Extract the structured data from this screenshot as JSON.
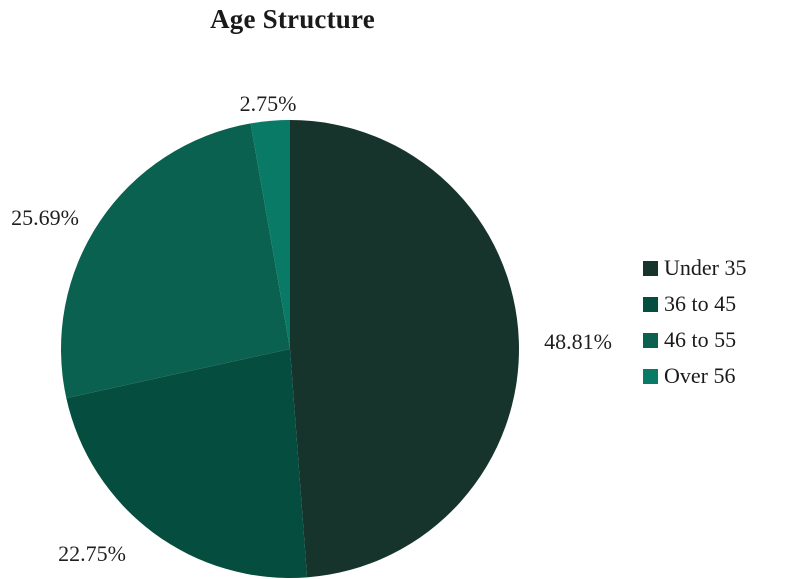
{
  "chart_data": {
    "type": "pie",
    "title": "Age Structure",
    "categories": [
      "Under 35",
      "36 to 45",
      "46 to 55",
      "Over 56"
    ],
    "values": [
      48.81,
      22.75,
      25.69,
      2.75
    ],
    "labels": [
      "48.81%",
      "22.75%",
      "25.69%",
      "2.75%"
    ],
    "colors": [
      "#16342c",
      "#054d3f",
      "#0a614f",
      "#087a66"
    ],
    "legend_position": "right",
    "start_angle": "12 o'clock",
    "direction": "clockwise"
  }
}
